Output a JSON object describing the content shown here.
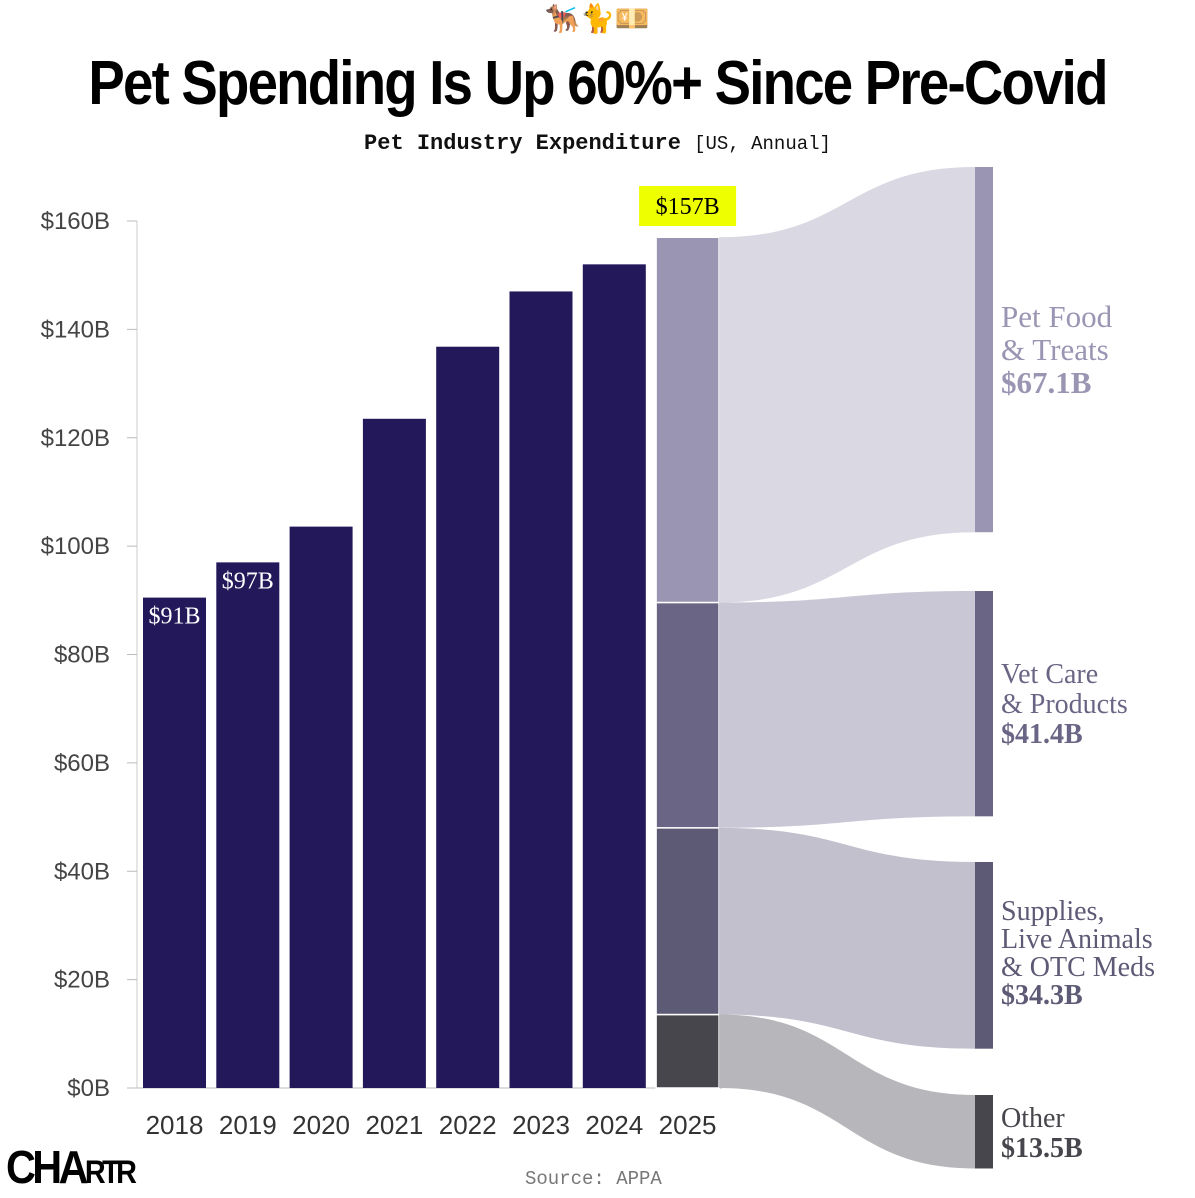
{
  "header": {
    "emoji": "🐕‍🦺🐈💴",
    "title": "Pet Spending Is Up 60%+ Since Pre-Covid",
    "subtitle": "Pet Industry Expenditure",
    "subtitle_note": "[US, Annual]"
  },
  "footer": {
    "logo": "CHARTR",
    "source": "Source: APPA"
  },
  "chart_data": {
    "type": "bar",
    "title": "Pet Industry Expenditure [US, Annual]",
    "ylabel": "",
    "xlabel": "",
    "ylim": [
      0,
      160
    ],
    "yticks": [
      "$0B",
      "$20B",
      "$40B",
      "$60B",
      "$80B",
      "$100B",
      "$120B",
      "$140B",
      "$160B"
    ],
    "categories": [
      "2018",
      "2019",
      "2020",
      "2021",
      "2022",
      "2023",
      "2024",
      "2025"
    ],
    "values": [
      90.5,
      97,
      103.6,
      123.5,
      136.8,
      147,
      152,
      157
    ],
    "data_labels": {
      "2018": "$91B",
      "2019": "$97B",
      "2025": "$157B"
    },
    "bar_color": "#23185a",
    "breakdown_2025": [
      {
        "name": "Pet Food & Treats",
        "line1": "Pet Food",
        "line2": "& Treats",
        "value": 67.1,
        "label": "$67.1B",
        "color": "#9a95b3",
        "flow": "#d9d8e3"
      },
      {
        "name": "Vet Care & Products",
        "line1": "Vet Care",
        "line2": "& Products",
        "value": 41.4,
        "label": "$41.4B",
        "color": "#6b6585",
        "flow": "#c9c7d5"
      },
      {
        "name": "Supplies, Live Animals & OTC Meds",
        "line1": "Supplies,",
        "line2": "Live Animals",
        "line3": "& OTC Meds",
        "value": 34.3,
        "label": "$34.3B",
        "color": "#5d5a75",
        "flow": "#c2c0cd"
      },
      {
        "name": "Other",
        "line1": "Other",
        "value": 13.5,
        "label": "$13.5B",
        "color": "#48464d",
        "flow": "#b7b6bb"
      }
    ],
    "highlight_color": "#eeff00"
  }
}
